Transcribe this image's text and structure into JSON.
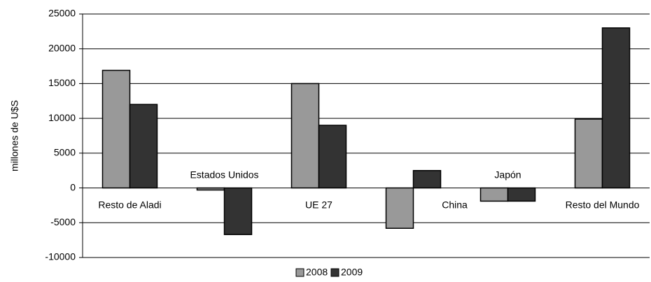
{
  "chart_data": {
    "type": "bar",
    "y_axis_label": "millones de U$S",
    "categories": [
      "Resto de Aladi",
      "Estados Unidos",
      "UE 27",
      "China",
      "Japón",
      "Resto del Mundo"
    ],
    "series": [
      {
        "name": "2008",
        "color": "#999999",
        "values": [
          16900,
          -300,
          15000,
          -5800,
          -1900,
          9900
        ]
      },
      {
        "name": "2009",
        "color": "#333333",
        "values": [
          12000,
          -6700,
          9000,
          2500,
          -1900,
          23000
        ]
      }
    ],
    "ylim": [
      -10000,
      25000
    ],
    "yticks": [
      -10000,
      -5000,
      0,
      5000,
      10000,
      15000,
      20000,
      25000
    ],
    "grid": true,
    "legend": "bottom"
  }
}
